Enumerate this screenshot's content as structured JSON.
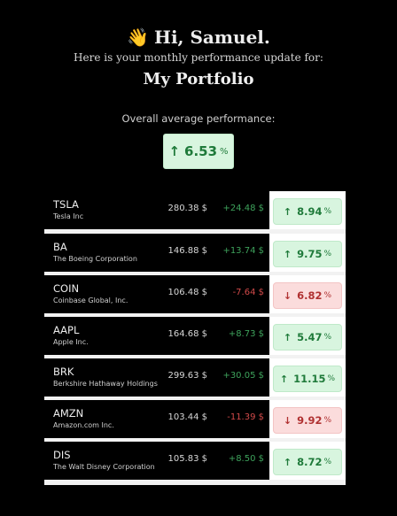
{
  "greeting": {
    "emoji": "👋",
    "text": "Hi, Samuel."
  },
  "subtitle": "Here is your monthly performance update for:",
  "portfolio_name": "My Portfolio",
  "overall": {
    "label": "Overall average performance:",
    "arrow": "↑",
    "value": "6.53",
    "unit": "%"
  },
  "rows": [
    {
      "ticker": "TSLA",
      "company": "Tesla Inc",
      "price": "280.38 $",
      "change": "+24.48 $",
      "direction": "pos",
      "arrow": "↑",
      "perf": "8.94",
      "unit": "%"
    },
    {
      "ticker": "BA",
      "company": "The Boeing Corporation",
      "price": "146.88 $",
      "change": "+13.74 $",
      "direction": "pos",
      "arrow": "↑",
      "perf": "9.75",
      "unit": "%"
    },
    {
      "ticker": "COIN",
      "company": "Coinbase Global, Inc.",
      "price": "106.48 $",
      "change": "-7.64 $",
      "direction": "neg",
      "arrow": "↓",
      "perf": "6.82",
      "unit": "%"
    },
    {
      "ticker": "AAPL",
      "company": "Apple Inc.",
      "price": "164.68 $",
      "change": "+8.73 $",
      "direction": "pos",
      "arrow": "↑",
      "perf": "5.47",
      "unit": "%"
    },
    {
      "ticker": "BRK",
      "company": "Berkshire Hathaway Holdings",
      "price": "299.63 $",
      "change": "+30.05 $",
      "direction": "pos",
      "arrow": "↑",
      "perf": "11.15",
      "unit": "%"
    },
    {
      "ticker": "AMZN",
      "company": "Amazon.com Inc.",
      "price": "103.44 $",
      "change": "-11.39 $",
      "direction": "neg",
      "arrow": "↓",
      "perf": "9.92",
      "unit": "%"
    },
    {
      "ticker": "DIS",
      "company": "The Walt Disney Corporation",
      "price": "105.83 $",
      "change": "+8.50 $",
      "direction": "pos",
      "arrow": "↑",
      "perf": "8.72",
      "unit": "%"
    }
  ]
}
